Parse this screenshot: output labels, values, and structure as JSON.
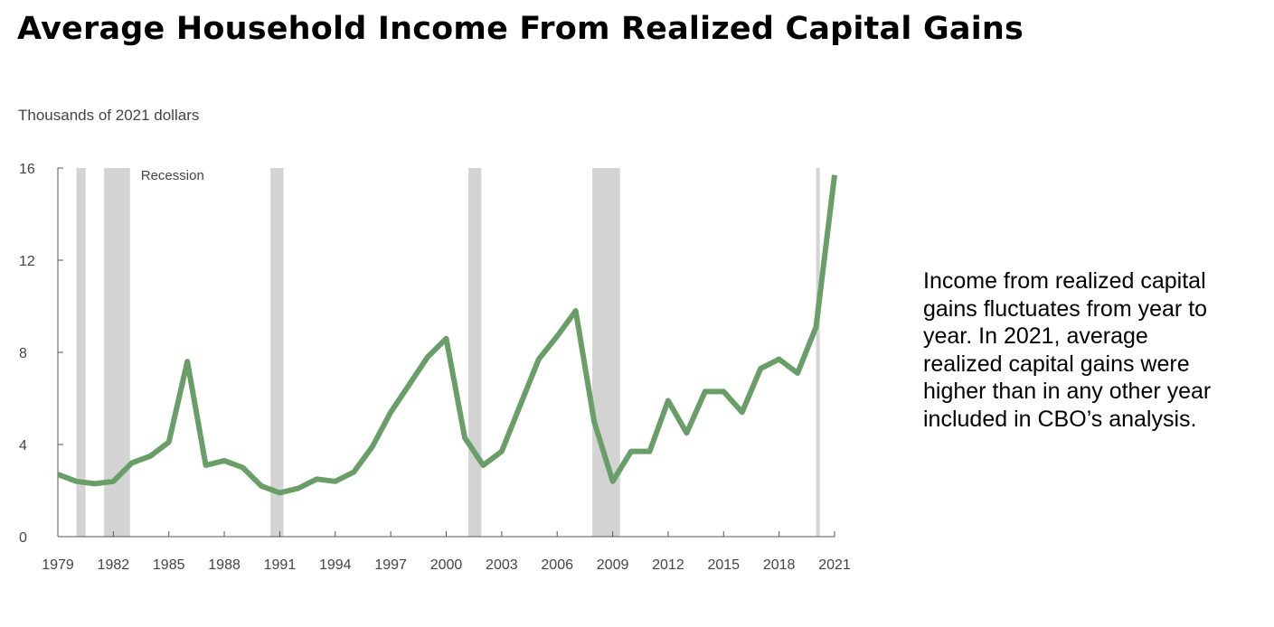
{
  "chart_data": {
    "type": "line",
    "title": "Average Household Income From Realized Capital Gains",
    "ylabel": "Thousands of 2021 dollars",
    "xlabel": "",
    "ylim": [
      0,
      16
    ],
    "xlim": [
      1979,
      2021
    ],
    "yticks": [
      "0",
      "4",
      "8",
      "12",
      "16"
    ],
    "xticks": [
      "1979",
      "1982",
      "1985",
      "1988",
      "1991",
      "1994",
      "1997",
      "2000",
      "2003",
      "2006",
      "2009",
      "2012",
      "2015",
      "2018",
      "2021"
    ],
    "grid": false,
    "series": [
      {
        "color": "#6a9e68",
        "x": [
          1979,
          1980,
          1981,
          1982,
          1983,
          1984,
          1985,
          1986,
          1987,
          1988,
          1989,
          1990,
          1991,
          1992,
          1993,
          1994,
          1995,
          1996,
          1997,
          1998,
          1999,
          2000,
          2001,
          2002,
          2003,
          2004,
          2005,
          2006,
          2007,
          2008,
          2009,
          2010,
          2011,
          2012,
          2013,
          2014,
          2015,
          2016,
          2017,
          2018,
          2019,
          2020,
          2021
        ],
        "values": [
          2.7,
          2.4,
          2.3,
          2.4,
          3.2,
          3.5,
          4.1,
          7.6,
          3.1,
          3.3,
          3.0,
          2.2,
          1.9,
          2.1,
          2.5,
          2.4,
          2.8,
          3.9,
          5.4,
          6.6,
          7.8,
          8.6,
          4.3,
          3.1,
          3.7,
          5.7,
          7.7,
          8.7,
          9.8,
          5.0,
          2.4,
          3.7,
          3.7,
          5.9,
          4.5,
          6.3,
          6.3,
          5.4,
          7.3,
          7.7,
          7.1,
          9.1,
          15.7
        ]
      }
    ],
    "recessions": {
      "label": "Recession",
      "color": "#d3d3d3",
      "periods": [
        [
          1980.0,
          1980.5
        ],
        [
          1981.5,
          1982.9
        ],
        [
          1990.5,
          1991.2
        ],
        [
          2001.2,
          2001.9
        ],
        [
          2007.9,
          2009.4
        ],
        [
          2020.0,
          2020.2
        ]
      ]
    }
  },
  "annotation": {
    "lines": [
      "Income from realized capital",
      "gains fluctuates from year to",
      "year. In 2021, average",
      "realized capital gains were",
      "higher than in any other year",
      "included in CBO’s analysis."
    ]
  }
}
